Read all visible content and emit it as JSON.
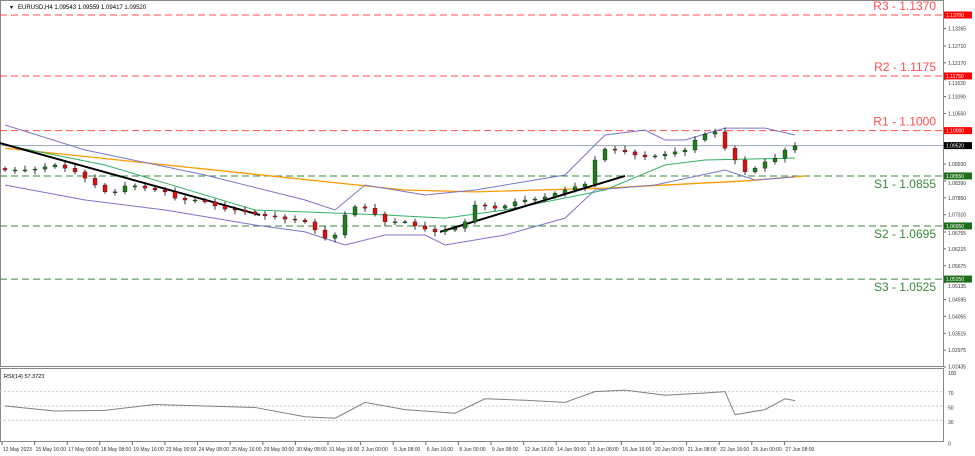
{
  "header": {
    "symbol_info": "EURUSD,H4  1.09543 1.09559 1.09417 1.09520"
  },
  "rsi_header": "RSI(14) 57.3723",
  "colors": {
    "resistance": "#ff4d4d",
    "support": "#3a8a3a",
    "candle_up": "#1e7d1e",
    "candle_down": "#e01010",
    "bollinger": "#7777cc",
    "ma_fast": "#33b266",
    "ma_slow": "#ff9900",
    "trendline": "#000000",
    "price_line": "#9aa7b8",
    "rsi_line": "#808080"
  },
  "levels": [
    {
      "label": "R3 - 1.1370",
      "price": 1.137,
      "tag": "1.13700",
      "type": "resistance"
    },
    {
      "label": "R2 - 1.1175",
      "price": 1.1175,
      "tag": "1.11750",
      "type": "resistance"
    },
    {
      "label": "R1 - 1.1000",
      "price": 1.1,
      "tag": "1.10000",
      "type": "resistance"
    },
    {
      "label": "S1 - 1.0855",
      "price": 1.0855,
      "tag": "1.08550",
      "type": "support"
    },
    {
      "label": "S2 - 1.0695",
      "price": 1.0695,
      "tag": "1.06950",
      "type": "support"
    },
    {
      "label": "S3 - 1.0525",
      "price": 1.0525,
      "tag": "1.05250",
      "type": "support"
    }
  ],
  "current_price": {
    "price": 1.0952,
    "tag": "1.09520"
  },
  "price_axis": [
    "1.13265",
    "1.12710",
    "1.12170",
    "1.11630",
    "1.11090",
    "1.10550",
    "1.08930",
    "1.08390",
    "1.07850",
    "1.07310",
    "1.06755",
    "1.06215",
    "1.05675",
    "1.05135",
    "1.04595",
    "1.04055",
    "1.03515",
    "1.02975",
    "1.02435"
  ],
  "rsi_axis": [
    "100",
    "70",
    "50",
    "30",
    "0"
  ],
  "time_axis": [
    "12 May 2023",
    "15 May 16:00",
    "17 May 00:00",
    "18 May 08:00",
    "19 May 16:00",
    "23 May 00:00",
    "24 May 08:00",
    "25 May 16:00",
    "29 May 00:00",
    "30 May 08:00",
    "31 May 16:00",
    "2 Jun 00:00",
    "5 Jun 08:00",
    "6 Jun 16:00",
    "8 Jun 00:00",
    "9 Jun 08:00",
    "12 Jun 16:00",
    "14 Jun 00:00",
    "15 Jun 08:00",
    "16 Jun 16:00",
    "20 Jun 00:00",
    "21 Jun 08:00",
    "22 Jun 16:00",
    "26 Jun 00:00",
    "27 Jun 08:00"
  ],
  "chart_data": {
    "type": "candlestick",
    "closes": [
      1.0874,
      1.0874,
      1.0874,
      1.0877,
      1.0884,
      1.089,
      1.088,
      1.0868,
      1.0848,
      1.0826,
      1.0804,
      1.0804,
      1.0823,
      1.0823,
      1.0816,
      1.081,
      1.0804,
      1.0784,
      1.0778,
      1.0778,
      1.0772,
      1.0759,
      1.0749,
      1.0746,
      1.074,
      1.0733,
      1.0727,
      1.0724,
      1.0717,
      1.0714,
      1.0708,
      1.0682,
      1.0656,
      1.0666,
      1.073,
      1.0756,
      1.0752,
      1.0733,
      1.0708,
      1.0708,
      1.0708,
      1.0695,
      1.0685,
      1.0676,
      1.0682,
      1.0688,
      1.0708,
      1.0762,
      1.0759,
      1.0752,
      1.0759,
      1.0772,
      1.0778,
      1.0781,
      1.0788,
      1.08,
      1.081,
      1.082,
      1.0829,
      1.0906,
      1.0941,
      1.0938,
      1.0932,
      1.0922,
      1.0916,
      1.0919,
      1.0925,
      1.0932,
      1.0938,
      1.097,
      1.0989,
      1.0996,
      1.0944,
      1.0906,
      1.0868,
      1.088,
      1.09,
      1.0912,
      1.0938,
      1.0951
    ],
    "bollinger_upper": [
      [
        0,
        1.1018
      ],
      [
        8,
        1.0938
      ],
      [
        20,
        1.0858
      ],
      [
        30,
        1.0778
      ],
      [
        33,
        1.0746
      ],
      [
        36,
        1.0826
      ],
      [
        42,
        1.0794
      ],
      [
        47,
        1.081
      ],
      [
        56,
        1.0858
      ],
      [
        60,
        1.0986
      ],
      [
        64,
        1.1002
      ],
      [
        66,
        1.097
      ],
      [
        68,
        1.097
      ],
      [
        72,
        1.1008
      ],
      [
        76,
        1.1008
      ],
      [
        79,
        1.0986
      ]
    ],
    "bollinger_lower": [
      [
        0,
        1.0826
      ],
      [
        8,
        1.0778
      ],
      [
        16,
        1.0746
      ],
      [
        25,
        1.0698
      ],
      [
        30,
        1.0676
      ],
      [
        34,
        1.0634
      ],
      [
        38,
        1.0666
      ],
      [
        42,
        1.0666
      ],
      [
        44,
        1.0634
      ],
      [
        50,
        1.0666
      ],
      [
        56,
        1.072
      ],
      [
        59,
        1.081
      ],
      [
        65,
        1.0826
      ],
      [
        72,
        1.0874
      ],
      [
        75,
        1.0842
      ],
      [
        79,
        1.0852
      ]
    ],
    "ma_fast": [
      [
        0,
        1.0954
      ],
      [
        10,
        1.089
      ],
      [
        25,
        1.0746
      ],
      [
        38,
        1.073
      ],
      [
        44,
        1.072
      ],
      [
        50,
        1.0746
      ],
      [
        60,
        1.081
      ],
      [
        66,
        1.089
      ],
      [
        70,
        1.0906
      ],
      [
        79,
        1.0912
      ]
    ],
    "ma_slow": [
      [
        0,
        1.0944
      ],
      [
        40,
        1.081
      ],
      [
        47,
        1.0804
      ],
      [
        60,
        1.0816
      ],
      [
        74,
        1.0839
      ],
      [
        80,
        1.0855
      ]
    ],
    "trendlines": [
      [
        [
          -0.5,
          1.096
        ],
        [
          25.5,
          1.073
        ]
      ],
      [
        [
          43.5,
          1.0676
        ],
        [
          62,
          1.0855
        ]
      ]
    ],
    "rsi": [
      [
        0,
        50
      ],
      [
        5,
        43
      ],
      [
        10,
        44
      ],
      [
        15,
        52
      ],
      [
        20,
        50
      ],
      [
        25,
        48
      ],
      [
        30,
        35
      ],
      [
        33,
        33
      ],
      [
        36,
        55
      ],
      [
        40,
        45
      ],
      [
        45,
        40
      ],
      [
        48,
        60
      ],
      [
        52,
        58
      ],
      [
        56,
        55
      ],
      [
        59,
        70
      ],
      [
        62,
        72
      ],
      [
        66,
        65
      ],
      [
        70,
        68
      ],
      [
        72,
        70
      ],
      [
        73,
        38
      ],
      [
        76,
        45
      ],
      [
        78,
        60
      ],
      [
        79,
        57.4
      ]
    ],
    "ylim": [
      1.02435,
      1.13805
    ],
    "rsi_levels": [
      70,
      50,
      30
    ]
  }
}
